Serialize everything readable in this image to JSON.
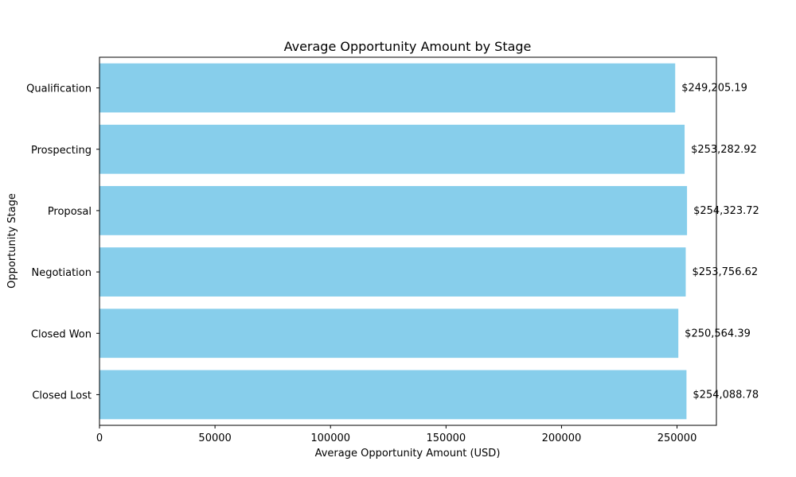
{
  "chart_data": {
    "type": "bar",
    "orientation": "horizontal",
    "title": "Average Opportunity Amount by Stage",
    "xlabel": "Average Opportunity Amount (USD)",
    "ylabel": "Opportunity Stage",
    "categories": [
      "Qualification",
      "Prospecting",
      "Proposal",
      "Negotiation",
      "Closed Won",
      "Closed Lost"
    ],
    "values": [
      249205.19,
      253282.92,
      254323.72,
      253756.62,
      250564.39,
      254088.78
    ],
    "value_labels": [
      "$249,205.19",
      "$253,282.92",
      "$254,323.72",
      "$253,756.62",
      "$250,564.39",
      "$254,088.78"
    ],
    "xlim": [
      0,
      267040
    ],
    "x_ticks": [
      0,
      50000,
      100000,
      150000,
      200000,
      250000
    ],
    "x_tick_labels": [
      "0",
      "50000",
      "100000",
      "150000",
      "200000",
      "250000"
    ],
    "bar_color": "#87ceeb",
    "grid": false,
    "legend": "none"
  }
}
